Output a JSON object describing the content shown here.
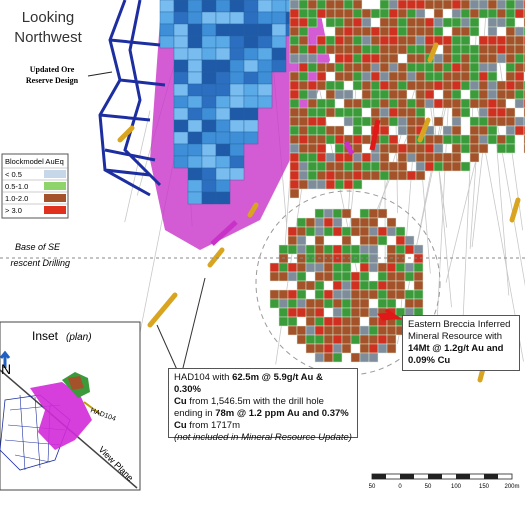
{
  "view_title": [
    "Looking",
    "Northwest"
  ],
  "ore_reserve_label": [
    "Updated Ore",
    "Reserve Design"
  ],
  "legend": {
    "title": "Blockmodel AuEq",
    "items": [
      {
        "label": "< 0.5",
        "color": "#c7d7ea"
      },
      {
        "label": "0.5-1.0",
        "color": "#8fd46a"
      },
      {
        "label": "1.0-2.0",
        "color": "#a3522a"
      },
      {
        "label": "> 3.0",
        "color": "#e0301e"
      }
    ]
  },
  "drilling_label": [
    "Base of SE",
    "rescent Drilling"
  ],
  "inset": {
    "title": "Inset",
    "subtitle": "(plan)",
    "north": "N",
    "hole": "HAD104",
    "view_plane": "View Plane"
  },
  "had104_callout": {
    "lines": [
      [
        "HAD104 with ",
        "62.5m @ 5.9g/t Au & 0.30%"
      ],
      [
        "Cu",
        " from 1,546.5m with the drill hole"
      ],
      [
        "ending in ",
        "78m @ 1.2 ppm Au and 0.37%"
      ],
      [
        "Cu",
        " from 1717m"
      ],
      [
        "(not included in Mineral Resource Update)"
      ]
    ]
  },
  "eastern_callout": {
    "lines": [
      "Eastern Breccia Inferred",
      "Mineral Resource with",
      "14Mt @ 1.2g/t Au and",
      "0.09% Cu"
    ]
  },
  "scale_bar": {
    "labels": [
      "50",
      "0",
      "50",
      "100",
      "150",
      "200m"
    ]
  }
}
